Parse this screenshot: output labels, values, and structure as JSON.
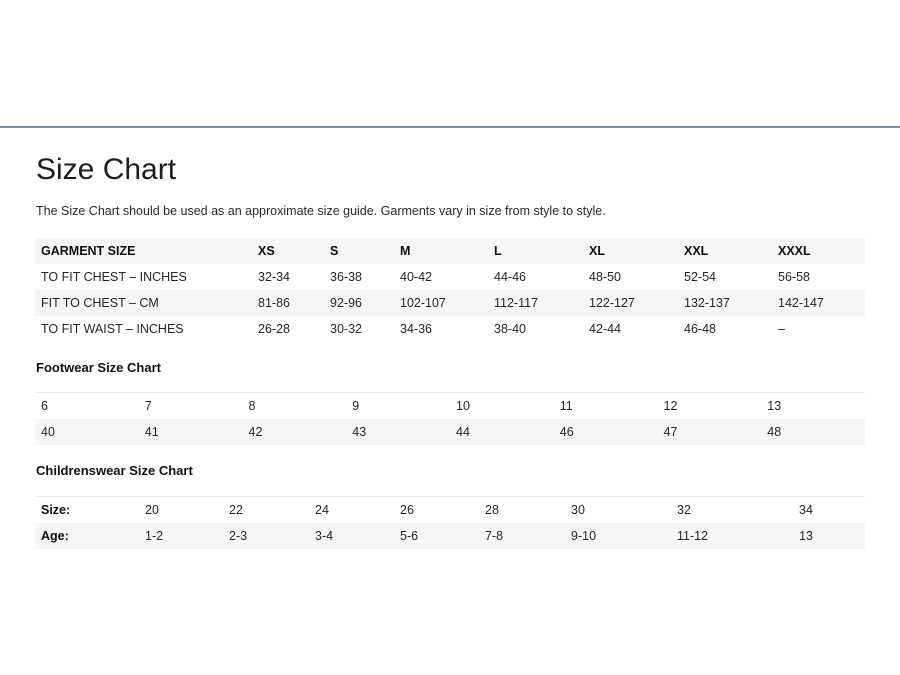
{
  "page": {
    "title": "Size Chart",
    "subtitle": "The Size Chart should be used as an approximate size guide. Garments vary in size from style to style."
  },
  "garment_table": {
    "headers": [
      "GARMENT SIZE",
      "XS",
      "S",
      "M",
      "L",
      "XL",
      "XXL",
      "XXXL"
    ],
    "rows": [
      [
        "TO FIT CHEST – INCHES",
        "32-34",
        "36-38",
        "40-42",
        "44-46",
        "48-50",
        "52-54",
        "56-58"
      ],
      [
        "FIT TO CHEST – CM",
        "81-86",
        "92-96",
        "102-107",
        "112-117",
        "122-127",
        "132-137",
        "142-147"
      ],
      [
        "TO FIT WAIST – INCHES",
        "26-28",
        "30-32",
        "34-36",
        "38-40",
        "42-44",
        "46-48",
        "–"
      ]
    ]
  },
  "footwear_table": {
    "heading": "Footwear Size Chart",
    "rows": [
      [
        "6",
        "7",
        "8",
        "9",
        "10",
        "11",
        "12",
        "13"
      ],
      [
        "40",
        "41",
        "42",
        "43",
        "44",
        "46",
        "47",
        "48"
      ]
    ]
  },
  "children_table": {
    "heading": "Childrenswear Size Chart",
    "rows": [
      [
        "Size:",
        "20",
        "22",
        "24",
        "26",
        "28",
        "30",
        "32",
        "34"
      ],
      [
        "Age:",
        "1-2",
        "2-3",
        "3-4",
        "5-6",
        "7-8",
        "9-10",
        "11-12",
        "13"
      ]
    ]
  }
}
